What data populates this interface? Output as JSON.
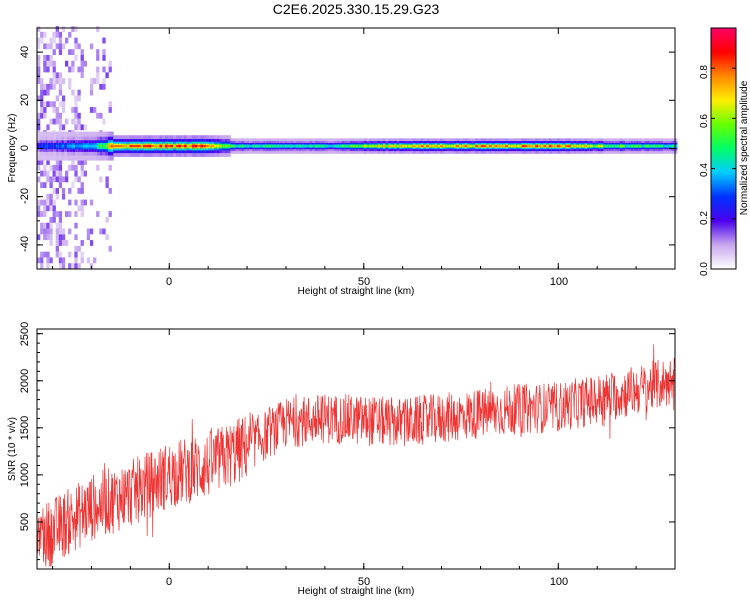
{
  "title": "C2E6.2025.330.15.29.G23",
  "chart_data": [
    {
      "type": "heatmap",
      "title": "",
      "xlabel": "Height of straight line (km)",
      "ylabel": "Frequency (Hz)",
      "xlim": [
        -34,
        130
      ],
      "ylim": [
        -50,
        50
      ],
      "x_ticks": [
        "0",
        "50",
        "100"
      ],
      "y_ticks": [
        "-40",
        "-20",
        "0",
        "20",
        "40"
      ],
      "colorbar": {
        "label": "Normalized spectral amplitude",
        "range": [
          0.0,
          0.96
        ],
        "ticks": [
          "0.0",
          "0.2",
          "0.4",
          "0.6",
          "0.8"
        ],
        "colormap": [
          "#ffffff",
          "#c9a8ee",
          "#4a00ee",
          "#0033ff",
          "#00ccff",
          "#00ff66",
          "#66ff00",
          "#ffee00",
          "#ff8800",
          "#ff0000",
          "#ff0066"
        ]
      },
      "ridge": {
        "x": [
          -34,
          -30,
          -25,
          -20,
          -15,
          -10,
          -5,
          0,
          5,
          10,
          15,
          20,
          30,
          40,
          50,
          60,
          70,
          80,
          90,
          100,
          110,
          120,
          130
        ],
        "amplitude": [
          0.25,
          0.3,
          0.35,
          0.35,
          0.75,
          0.75,
          0.8,
          0.8,
          0.8,
          0.85,
          0.5,
          0.45,
          0.45,
          0.45,
          0.6,
          0.72,
          0.72,
          0.75,
          0.78,
          0.8,
          0.6,
          0.5,
          0.45
        ]
      },
      "center_frequency": 1
    },
    {
      "type": "line",
      "title": "",
      "xlabel": "Height of straight line (km)",
      "ylabel": "SNR (10 * v/v)",
      "xlim": [
        -34,
        130
      ],
      "ylim": [
        0,
        2550
      ],
      "x_ticks": [
        "0",
        "50",
        "100"
      ],
      "y_ticks": [
        "500",
        "1000",
        "1500",
        "2000",
        "2500"
      ],
      "color": "#ee3333",
      "trend": {
        "x": [
          -34,
          -20,
          -10,
          0,
          10,
          20,
          30,
          40,
          50,
          60,
          70,
          80,
          90,
          100,
          110,
          120,
          130
        ],
        "y": [
          300,
          650,
          800,
          1000,
          1100,
          1300,
          1550,
          1600,
          1580,
          1550,
          1600,
          1650,
          1700,
          1720,
          1800,
          1900,
          2000
        ]
      },
      "spread": 300
    }
  ]
}
